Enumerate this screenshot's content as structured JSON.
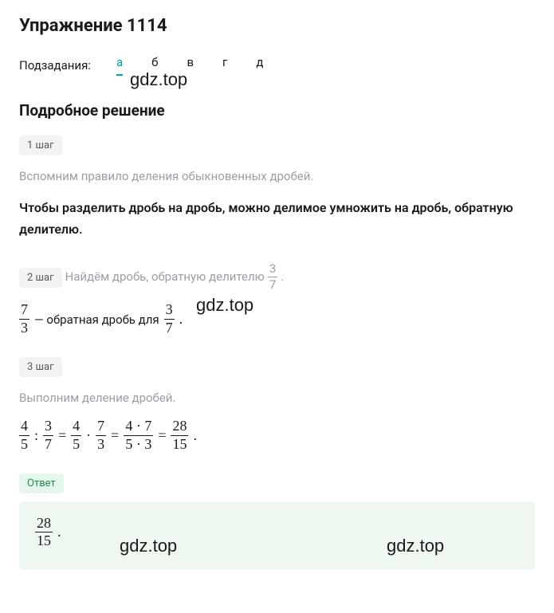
{
  "title": "Упражнение 1114",
  "subtask_label": "Подзадания:",
  "tabs": [
    {
      "label": "а",
      "active": true
    },
    {
      "label": "б",
      "active": false
    },
    {
      "label": "в",
      "active": false
    },
    {
      "label": "г",
      "active": false
    },
    {
      "label": "д",
      "active": false
    }
  ],
  "tab_active_color": "#00a3a3",
  "section_title": "Подробное решение",
  "watermark_text": "gdz.top",
  "steps": [
    {
      "badge": "1 шаг",
      "muted": "Вспомним правило деления обыкновенных дробей.",
      "bold": "Чтобы разделить дробь на дробь, можно делимое умножить на дробь, обратную делителю."
    },
    {
      "badge": "2 шаг",
      "muted_prefix": "Найдём дробь, обратную делителю ",
      "muted_frac": {
        "num": "3",
        "den": "7"
      },
      "muted_suffix": ".",
      "line2_frac1": {
        "num": "7",
        "den": "3"
      },
      "line2_mid": " — обратная дробь для ",
      "line2_frac2": {
        "num": "3",
        "den": "7"
      },
      "line2_end": "."
    },
    {
      "badge": "3 шаг",
      "muted": "Выполним деление дробей.",
      "equation": {
        "f1": {
          "num": "4",
          "den": "5"
        },
        "op1": ":",
        "f2": {
          "num": "3",
          "den": "7"
        },
        "eq1": "=",
        "f3": {
          "num": "4",
          "den": "5"
        },
        "op2": "·",
        "f4": {
          "num": "7",
          "den": "3"
        },
        "eq2": "=",
        "f5": {
          "num": "4 · 7",
          "den": "5 · 3"
        },
        "eq3": "=",
        "f6": {
          "num": "28",
          "den": "15"
        },
        "end": "."
      }
    }
  ],
  "answer_label": "Ответ",
  "answer_frac": {
    "num": "28",
    "den": "15"
  },
  "answer_suffix": ".",
  "colors": {
    "badge_bg": "#f2f3f5",
    "badge_text": "#5a5a5a",
    "muted_text": "#9b9ea3",
    "answer_badge_bg": "#e5f6ec",
    "answer_badge_text": "#1f8f4e",
    "answer_box_bg": "#eef8f1"
  }
}
